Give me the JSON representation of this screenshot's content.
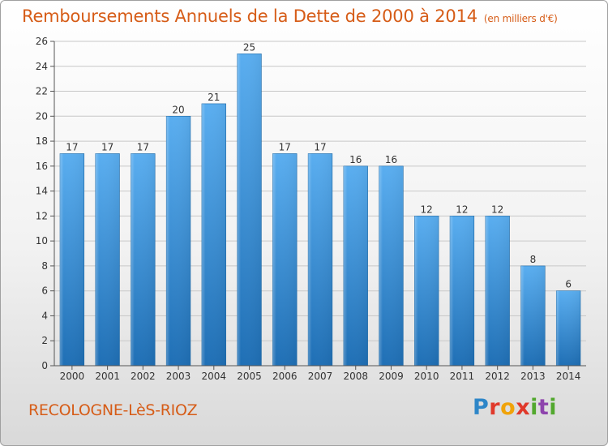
{
  "title": "Remboursements Annuels de la Dette de 2000 à 2014",
  "subtitle": "(en milliers d'€)",
  "commune": "RECOLOGNE-LèS-RIOZ",
  "logo": {
    "text": "Proxiti"
  },
  "colors": {
    "title": "#d65c17",
    "bar_top": "#5aaef0",
    "bar_bottom": "#1f6fb5",
    "grid": "#c8c8c8"
  },
  "chart_data": {
    "type": "bar",
    "title": "Remboursements Annuels de la Dette de 2000 à 2014",
    "subtitle": "(en milliers d'€)",
    "categories": [
      "2000",
      "2001",
      "2002",
      "2003",
      "2004",
      "2005",
      "2006",
      "2007",
      "2008",
      "2009",
      "2010",
      "2011",
      "2012",
      "2013",
      "2014"
    ],
    "values": [
      17,
      17,
      17,
      20,
      21,
      25,
      17,
      17,
      16,
      16,
      12,
      12,
      12,
      8,
      6
    ],
    "ylim": [
      0,
      26
    ],
    "yticks": [
      0,
      2,
      4,
      6,
      8,
      10,
      12,
      14,
      16,
      18,
      20,
      22,
      24,
      26
    ],
    "grid": true,
    "xlabel": "",
    "ylabel": ""
  }
}
